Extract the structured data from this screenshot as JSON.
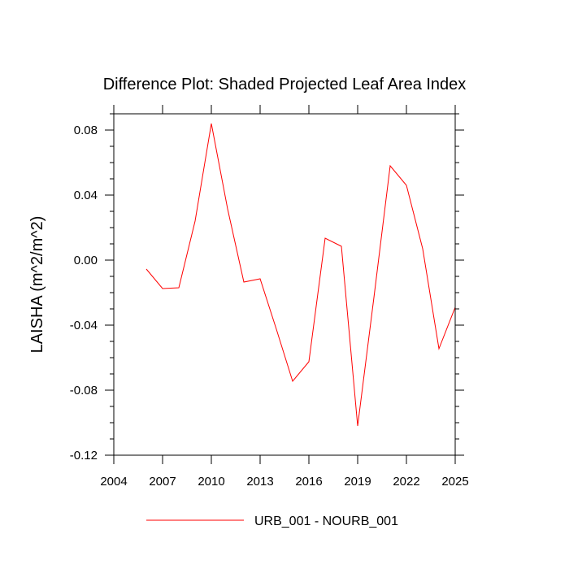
{
  "chart_data": {
    "type": "line",
    "title": "Difference Plot: Shaded Projected Leaf Area Index",
    "ylabel": "LAISHA  (m^2/m^2)",
    "xlabel": "",
    "xlim": [
      2004,
      2025
    ],
    "ylim": [
      -0.12,
      0.09
    ],
    "xticks": [
      "2004",
      "2007",
      "2010",
      "2013",
      "2016",
      "2019",
      "2022",
      "2025"
    ],
    "yticks": [
      "0.08",
      "0.04",
      "0.00",
      "-0.04",
      "-0.08",
      "-0.12"
    ],
    "grid": false,
    "legend_position": "bottom",
    "series": [
      {
        "name": "URB_001 - NOURB_001",
        "color": "#ff0000",
        "x": [
          2006,
          2007,
          2008,
          2009,
          2010,
          2011,
          2012,
          2013,
          2014,
          2015,
          2016,
          2017,
          2018,
          2019,
          2020,
          2021,
          2022,
          2023,
          2024,
          2025
        ],
        "y": [
          -0.0055,
          -0.0175,
          -0.017,
          0.024,
          0.084,
          0.0315,
          -0.0135,
          -0.0115,
          -0.0425,
          -0.0745,
          -0.0625,
          0.0135,
          0.0085,
          -0.102,
          -0.023,
          0.058,
          0.046,
          0.007,
          -0.0545,
          -0.029
        ]
      }
    ]
  }
}
